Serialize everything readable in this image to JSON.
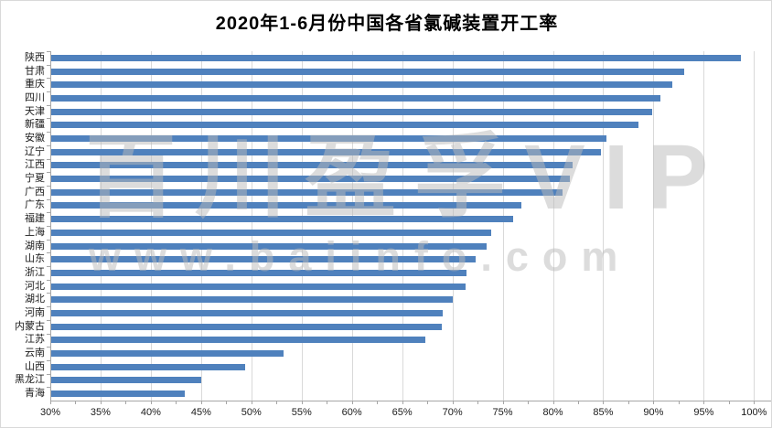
{
  "title": "2020年1-6月份中国各省氯碱装置开工率",
  "watermark": {
    "line1": "百川盈孚VIP",
    "line2": "www.baiinfo.com"
  },
  "chart_data": {
    "type": "bar",
    "orientation": "horizontal",
    "title": "2020年1-6月份中国各省氯碱装置开工率",
    "xlabel": "",
    "ylabel": "",
    "xlim": [
      30,
      100
    ],
    "x_major_step": 5,
    "x_minor_step": 2.5,
    "x_tick_labels": [
      "30%",
      "35%",
      "40%",
      "45%",
      "50%",
      "55%",
      "60%",
      "65%",
      "70%",
      "75%",
      "80%",
      "85%",
      "90%",
      "95%",
      "100%"
    ],
    "grid": true,
    "legend_position": "none",
    "categories": [
      "陕西",
      "甘肃",
      "重庆",
      "四川",
      "天津",
      "新疆",
      "安徽",
      "辽宁",
      "江西",
      "宁夏",
      "广西",
      "广东",
      "福建",
      "上海",
      "湖南",
      "山东",
      "浙江",
      "河北",
      "湖北",
      "河南",
      "内蒙古",
      "江苏",
      "云南",
      "山西",
      "黑龙江",
      "青海"
    ],
    "values": [
      98.7,
      93.1,
      91.9,
      90.7,
      89.9,
      88.5,
      85.3,
      84.8,
      82.0,
      81.7,
      81.0,
      76.9,
      76.0,
      73.9,
      73.4,
      72.3,
      71.4,
      71.3,
      70.0,
      69.0,
      68.9,
      67.3,
      53.2,
      49.4,
      45.0,
      43.4
    ],
    "unit": "%",
    "bar_color": "#4f81bd",
    "gridline_color": "#d9d9d9",
    "axis_color": "#a6a6a6",
    "text_color": "#1a1a1a"
  }
}
